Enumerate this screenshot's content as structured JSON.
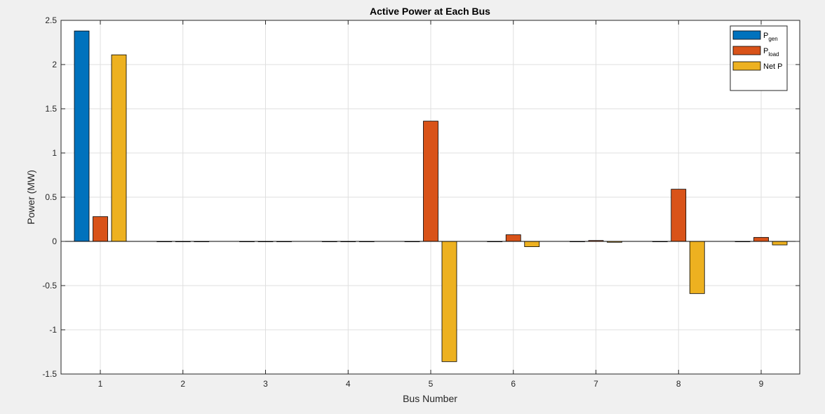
{
  "chart_data": {
    "type": "bar",
    "title": "Active Power at Each Bus",
    "xlabel": "Bus Number",
    "ylabel": "Power (MW)",
    "categories": [
      "1",
      "2",
      "3",
      "4",
      "5",
      "6",
      "7",
      "8",
      "9"
    ],
    "ylim": [
      -1.5,
      2.5
    ],
    "yticks": [
      "2.5",
      "2",
      "1.5",
      "1",
      "0.5",
      "0",
      "-0.5",
      "-1",
      "-1.5"
    ],
    "ytick_values": [
      2.5,
      2,
      1.5,
      1,
      0.5,
      0,
      -0.5,
      -1,
      -1.5
    ],
    "grid": true,
    "legend_position": "top-right",
    "series": [
      {
        "name": "P",
        "name_subscript": "gen",
        "color": "#0072BD",
        "values": [
          2.38,
          0,
          0,
          0,
          0,
          0,
          0,
          0,
          0
        ]
      },
      {
        "name": "P",
        "name_subscript": "load",
        "color": "#D95319",
        "values": [
          0.28,
          0,
          0,
          0,
          1.36,
          0.075,
          0.01,
          0.59,
          0.045
        ]
      },
      {
        "name": "Net P",
        "name_subscript": "",
        "color": "#EDB120",
        "values": [
          2.11,
          0,
          0,
          0,
          -1.36,
          -0.06,
          -0.01,
          -0.59,
          -0.04
        ]
      }
    ]
  }
}
